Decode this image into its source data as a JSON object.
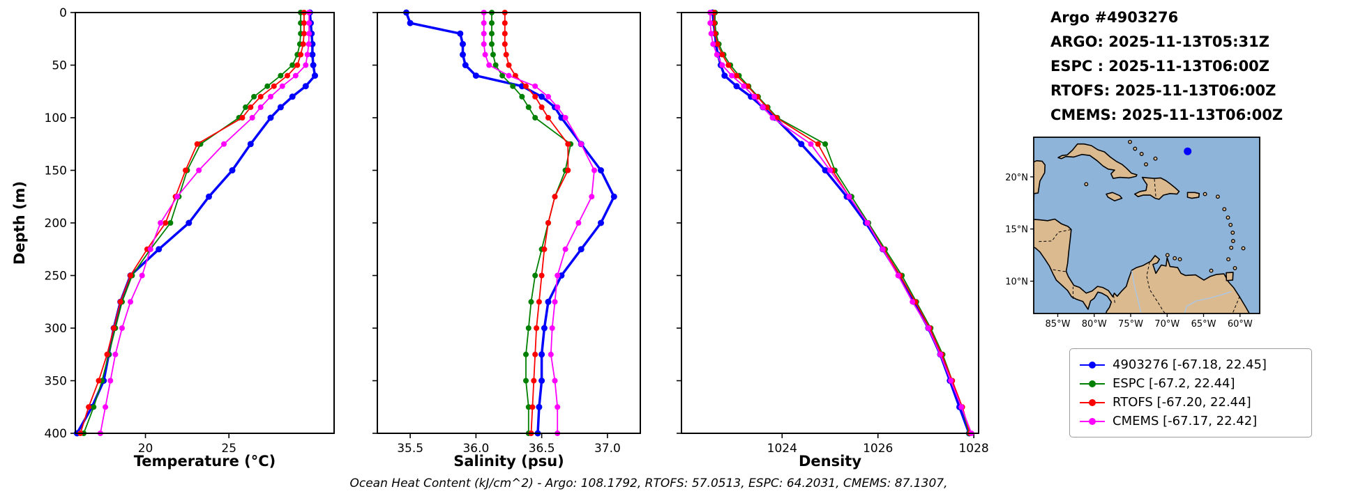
{
  "header": {
    "lines": [
      "Argo #4903276",
      "ARGO: 2025-11-13T05:31Z",
      "ESPC : 2025-11-13T06:00Z",
      "RTOFS: 2025-11-13T06:00Z",
      "CMEMS: 2025-11-13T06:00Z"
    ]
  },
  "footer": {
    "text": "Ocean Heat Content (kJ/cm^2) - Argo: 108.1792,  RTOFS: 57.0513,  ESPC: 64.2031,  CMEMS: 87.1307,"
  },
  "axes": {
    "ylabel": "Depth (m)",
    "xlabels": [
      "Temperature (°C)",
      "Salinity (psu)",
      "Density"
    ]
  },
  "legend": {
    "items": [
      {
        "label": "4903276 [-67.18, 22.45]",
        "color": "#0000ff"
      },
      {
        "label": "ESPC [-67.2, 22.44]",
        "color": "#008000"
      },
      {
        "label": "RTOFS [-67.20, 22.44]",
        "color": "#ff0000"
      },
      {
        "label": "CMEMS [-67.17, 22.42]",
        "color": "#ff00ff"
      }
    ]
  },
  "chart_data": [
    {
      "type": "line",
      "xlabel": "Temperature (°C)",
      "ylabel": "Depth (m)",
      "xlim": [
        15.8,
        31.3
      ],
      "ylim": [
        0,
        400
      ],
      "xticks": [
        20,
        25
      ],
      "xtick_labels": [
        "20",
        "25"
      ],
      "yticks": [
        0,
        50,
        100,
        150,
        200,
        250,
        300,
        350,
        400
      ],
      "ytick_labels": [
        "0",
        "50",
        "100",
        "150",
        "200",
        "250",
        "300",
        "350",
        "400"
      ],
      "depths": [
        0,
        10,
        20,
        30,
        40,
        50,
        60,
        70,
        80,
        90,
        100,
        125,
        150,
        175,
        200,
        225,
        250,
        275,
        300,
        325,
        350,
        375,
        400
      ],
      "series": [
        {
          "name": "4903276",
          "color": "#0000ff",
          "lw": 3.5,
          "ms": 4.5,
          "values": [
            29.85,
            29.9,
            29.95,
            30.0,
            30.0,
            30.05,
            30.15,
            29.6,
            28.8,
            28.1,
            27.5,
            26.3,
            25.2,
            23.8,
            22.6,
            20.8,
            19.1,
            18.5,
            18.1,
            17.8,
            17.5,
            16.8,
            15.9
          ]
        },
        {
          "name": "ESPC",
          "color": "#008000",
          "lw": 1.8,
          "ms": 4,
          "values": [
            29.3,
            29.3,
            29.3,
            29.25,
            29.1,
            28.8,
            28.1,
            27.3,
            26.5,
            26.0,
            25.6,
            23.3,
            22.5,
            22.0,
            21.5,
            20.3,
            19.2,
            18.6,
            18.2,
            17.8,
            17.4,
            16.9,
            16.3
          ]
        },
        {
          "name": "RTOFS",
          "color": "#ff0000",
          "lw": 1.8,
          "ms": 4,
          "values": [
            29.5,
            29.5,
            29.5,
            29.45,
            29.3,
            29.1,
            28.5,
            27.7,
            26.9,
            26.3,
            25.8,
            23.1,
            22.4,
            21.8,
            21.2,
            20.1,
            19.1,
            18.5,
            18.1,
            17.7,
            17.2,
            16.6,
            16.1
          ]
        },
        {
          "name": "CMEMS",
          "color": "#ff00ff",
          "lw": 1.8,
          "ms": 4,
          "values": [
            29.8,
            29.8,
            29.8,
            29.78,
            29.7,
            29.6,
            29.0,
            28.2,
            27.5,
            26.9,
            26.4,
            24.7,
            23.2,
            21.9,
            20.9,
            20.3,
            19.8,
            19.1,
            18.6,
            18.2,
            17.9,
            17.6,
            17.3
          ]
        }
      ]
    },
    {
      "type": "line",
      "xlabel": "Salinity (psu)",
      "ylabel": "Depth (m)",
      "xlim": [
        35.25,
        37.25
      ],
      "ylim": [
        0,
        400
      ],
      "xticks": [
        35.5,
        36.0,
        36.5,
        37.0
      ],
      "xtick_labels": [
        "35.5",
        "36.0",
        "36.5",
        "37.0"
      ],
      "yticks": [
        0,
        50,
        100,
        150,
        200,
        250,
        300,
        350,
        400
      ],
      "ytick_labels": [
        "0",
        "50",
        "100",
        "150",
        "200",
        "250",
        "300",
        "350",
        "400"
      ],
      "depths": [
        0,
        10,
        20,
        30,
        40,
        50,
        60,
        70,
        80,
        90,
        100,
        125,
        150,
        175,
        200,
        225,
        250,
        275,
        300,
        325,
        350,
        375,
        400
      ],
      "series": [
        {
          "name": "4903276",
          "color": "#0000ff",
          "lw": 3.5,
          "ms": 4.5,
          "values": [
            35.47,
            35.5,
            35.88,
            35.9,
            35.9,
            35.92,
            36.0,
            36.35,
            36.5,
            36.6,
            36.65,
            36.8,
            36.95,
            37.05,
            36.95,
            36.8,
            36.65,
            36.55,
            36.52,
            36.5,
            36.5,
            36.48,
            36.47
          ]
        },
        {
          "name": "ESPC",
          "color": "#008000",
          "lw": 1.8,
          "ms": 4,
          "values": [
            36.12,
            36.12,
            36.12,
            36.12,
            36.13,
            36.15,
            36.2,
            36.28,
            36.35,
            36.4,
            36.45,
            36.72,
            36.68,
            36.6,
            36.55,
            36.5,
            36.45,
            36.42,
            36.4,
            36.38,
            36.38,
            36.4,
            36.4
          ]
        },
        {
          "name": "RTOFS",
          "color": "#ff0000",
          "lw": 1.8,
          "ms": 4,
          "values": [
            36.22,
            36.22,
            36.22,
            36.22,
            36.23,
            36.25,
            36.3,
            36.38,
            36.45,
            36.5,
            36.55,
            36.7,
            36.7,
            36.6,
            36.55,
            36.52,
            36.5,
            36.48,
            36.46,
            36.45,
            36.44,
            36.43,
            36.42
          ]
        },
        {
          "name": "CMEMS",
          "color": "#ff00ff",
          "lw": 1.8,
          "ms": 4,
          "values": [
            36.06,
            36.06,
            36.06,
            36.06,
            36.07,
            36.1,
            36.25,
            36.45,
            36.55,
            36.62,
            36.68,
            36.8,
            36.9,
            36.88,
            36.78,
            36.68,
            36.62,
            36.6,
            36.58,
            36.57,
            36.6,
            36.62,
            36.62
          ]
        }
      ]
    },
    {
      "type": "line",
      "xlabel": "Density",
      "ylabel": "Depth (m)",
      "xlim": [
        1021.9,
        1028.1
      ],
      "ylim": [
        0,
        400
      ],
      "xticks": [
        1024,
        1026,
        1028
      ],
      "xtick_labels": [
        "1024",
        "1026",
        "1028"
      ],
      "yticks": [
        0,
        50,
        100,
        150,
        200,
        250,
        300,
        350,
        400
      ],
      "ytick_labels": [
        "0",
        "50",
        "100",
        "150",
        "200",
        "250",
        "300",
        "350",
        "400"
      ],
      "depths": [
        0,
        10,
        20,
        30,
        40,
        50,
        60,
        70,
        80,
        90,
        100,
        125,
        150,
        175,
        200,
        225,
        250,
        275,
        300,
        325,
        350,
        375,
        400
      ],
      "series": [
        {
          "name": "4903276",
          "color": "#0000ff",
          "lw": 3.5,
          "ms": 4.5,
          "values": [
            1022.55,
            1022.57,
            1022.6,
            1022.62,
            1022.66,
            1022.72,
            1022.8,
            1023.05,
            1023.35,
            1023.6,
            1023.85,
            1024.4,
            1024.9,
            1025.35,
            1025.75,
            1026.1,
            1026.45,
            1026.75,
            1027.05,
            1027.3,
            1027.5,
            1027.7,
            1027.9
          ]
        },
        {
          "name": "ESPC",
          "color": "#008000",
          "lw": 1.8,
          "ms": 4,
          "values": [
            1022.6,
            1022.6,
            1022.62,
            1022.68,
            1022.78,
            1022.92,
            1023.1,
            1023.3,
            1023.5,
            1023.7,
            1023.9,
            1024.9,
            1025.1,
            1025.45,
            1025.8,
            1026.15,
            1026.5,
            1026.8,
            1027.1,
            1027.35,
            1027.55,
            1027.75,
            1027.9
          ]
        },
        {
          "name": "RTOFS",
          "color": "#ff0000",
          "lw": 1.8,
          "ms": 4,
          "values": [
            1022.58,
            1022.58,
            1022.6,
            1022.65,
            1022.75,
            1022.88,
            1023.05,
            1023.28,
            1023.48,
            1023.68,
            1023.88,
            1024.75,
            1025.05,
            1025.4,
            1025.78,
            1026.12,
            1026.46,
            1026.78,
            1027.08,
            1027.33,
            1027.55,
            1027.76,
            1027.92
          ]
        },
        {
          "name": "CMEMS",
          "color": "#ff00ff",
          "lw": 1.8,
          "ms": 4,
          "values": [
            1022.5,
            1022.5,
            1022.52,
            1022.56,
            1022.64,
            1022.75,
            1022.95,
            1023.2,
            1023.42,
            1023.6,
            1023.8,
            1024.6,
            1025.0,
            1025.4,
            1025.78,
            1026.1,
            1026.42,
            1026.72,
            1027.05,
            1027.3,
            1027.52,
            1027.74,
            1027.95
          ]
        }
      ]
    }
  ],
  "map": {
    "extent": {
      "lon": [
        -88.3,
        -57.3
      ],
      "lat": [
        6.9,
        23.8
      ]
    },
    "ocean_color": "#8fb4da",
    "land_color": "#dcba90",
    "coast_color": "#000000",
    "river_color": "#a9c7e6",
    "xticks": [
      -85,
      -80,
      -75,
      -70,
      -65,
      -60
    ],
    "xtick_labels": [
      "85°W",
      "80°W",
      "75°W",
      "70°W",
      "65°W",
      "60°W"
    ],
    "yticks": [
      10,
      15,
      20
    ],
    "ytick_labels": [
      "10°N",
      "15°N",
      "20°N"
    ],
    "marker": {
      "lon": -67.18,
      "lat": 22.45,
      "color": "#0000ff"
    }
  }
}
